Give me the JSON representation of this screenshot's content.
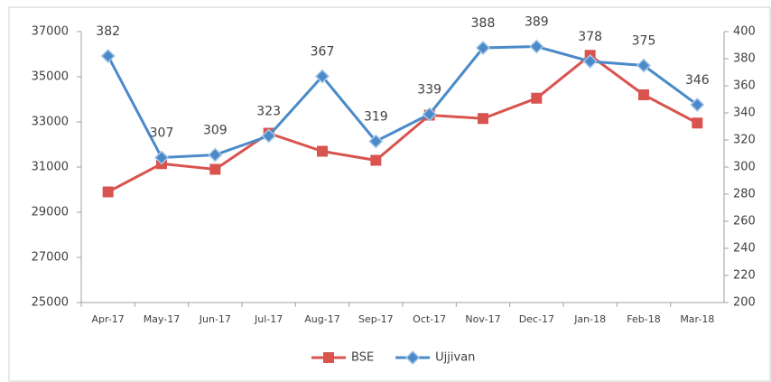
{
  "chart_data": {
    "type": "line",
    "categories": [
      "Apr-17",
      "May-17",
      "Jun-17",
      "Jul-17",
      "Aug-17",
      "Sep-17",
      "Oct-17",
      "Nov-17",
      "Dec-17",
      "Jan-18",
      "Feb-18",
      "Mar-18"
    ],
    "series": [
      {
        "name": "BSE",
        "color": "#d9534f",
        "marker": "square",
        "values": [
          29900,
          31150,
          30900,
          32500,
          31700,
          31300,
          33300,
          33150,
          34050,
          35950,
          34200,
          32950
        ]
      },
      {
        "name": "Ujjivan",
        "color": "#4a8ac9",
        "marker": "diamond",
        "axis": "y2",
        "data_labels": true,
        "values": [
          382,
          307,
          309,
          323,
          367,
          319,
          339,
          388,
          389,
          378,
          375,
          346
        ]
      }
    ],
    "ylim": [
      25000,
      37000
    ],
    "yticks": [
      25000,
      27000,
      29000,
      31000,
      33000,
      35000,
      37000
    ],
    "y2lim": [
      200,
      400
    ],
    "y2ticks": [
      200,
      220,
      240,
      260,
      280,
      300,
      320,
      340,
      360,
      380,
      400
    ],
    "grid": false,
    "legend": "bottom"
  }
}
